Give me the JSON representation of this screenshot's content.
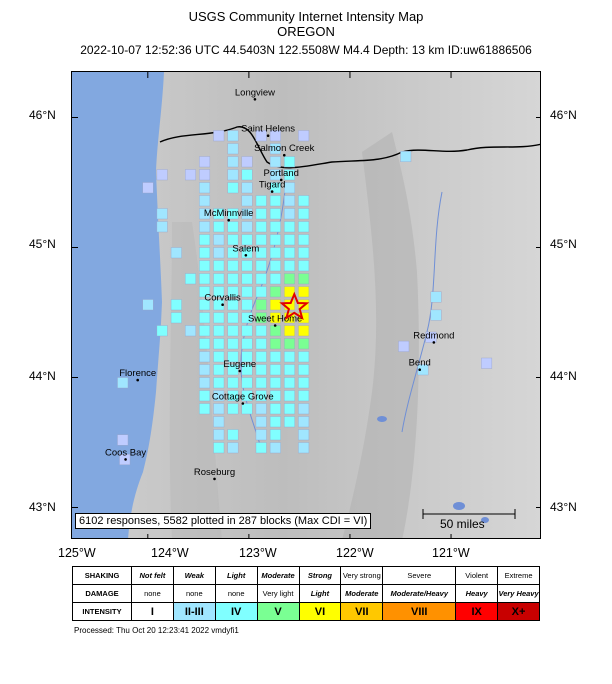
{
  "header": {
    "title": "USGS Community Internet Intensity Map",
    "region": "OREGON",
    "event_line": "2022-10-07 12:52:36 UTC 44.5403N 122.5508W M4.4 Depth: 13 km ID:uw61886506"
  },
  "axes": {
    "lat_labels": [
      "46°N",
      "45°N",
      "44°N",
      "43°N"
    ],
    "lon_labels": [
      "125°W",
      "124°W",
      "123°W",
      "122°W",
      "121°W"
    ],
    "lat_values": [
      46,
      45,
      44,
      43
    ],
    "lon_values": [
      -125,
      -124,
      -123,
      -122,
      -121
    ],
    "lat_range": [
      42.75,
      46.35
    ],
    "lon_range": [
      -124.75,
      -120.1
    ]
  },
  "cities": [
    {
      "name": "Longview",
      "lat": 46.14,
      "lon": -122.94
    },
    {
      "name": "Saint Helens",
      "lat": 45.86,
      "lon": -122.81
    },
    {
      "name": "Salmon Creek",
      "lat": 45.71,
      "lon": -122.65
    },
    {
      "name": "Portland",
      "lat": 45.52,
      "lon": -122.68
    },
    {
      "name": "Tigard",
      "lat": 45.43,
      "lon": -122.77
    },
    {
      "name": "McMinnville",
      "lat": 45.21,
      "lon": -123.2
    },
    {
      "name": "Salem",
      "lat": 44.94,
      "lon": -123.03
    },
    {
      "name": "Corvallis",
      "lat": 44.56,
      "lon": -123.26
    },
    {
      "name": "Sweet Home",
      "lat": 44.4,
      "lon": -122.74
    },
    {
      "name": "Redmond",
      "lat": 44.27,
      "lon": -121.17
    },
    {
      "name": "Bend",
      "lat": 44.06,
      "lon": -121.31
    },
    {
      "name": "Florence",
      "lat": 43.98,
      "lon": -124.1
    },
    {
      "name": "Eugene",
      "lat": 44.05,
      "lon": -123.09
    },
    {
      "name": "Cottage Grove",
      "lat": 43.8,
      "lon": -123.06
    },
    {
      "name": "Coos Bay",
      "lat": 43.37,
      "lon": -124.22
    },
    {
      "name": "Roseburg",
      "lat": 43.22,
      "lon": -123.34
    }
  ],
  "epicenter": {
    "lat": 44.5403,
    "lon": -122.5508,
    "icon": "red-star-icon"
  },
  "stats": "6102 responses, 5582 plotted in 287 blocks (Max CDI = VI)",
  "scale_bar": {
    "label": "50 miles"
  },
  "legend": {
    "rows": [
      {
        "header": "SHAKING",
        "cells": [
          "Not felt",
          "Weak",
          "Light",
          "Moderate",
          "Strong",
          "Very strong",
          "Severe",
          "Violent",
          "Extreme"
        ]
      },
      {
        "header": "DAMAGE",
        "cells": [
          "none",
          "none",
          "none",
          "Very light",
          "Light",
          "Moderate",
          "Moderate/Heavy",
          "Heavy",
          "Very Heavy"
        ]
      },
      {
        "header": "INTENSITY",
        "cells": [
          "I",
          "II-III",
          "IV",
          "V",
          "VI",
          "VII",
          "VIII",
          "IX",
          "X+"
        ]
      }
    ],
    "colors": [
      "#ffffff",
      "#bfccff",
      "#a0e6ff",
      "#80ffff",
      "#7aff93",
      "#ffff00",
      "#ffc800",
      "#ff9100",
      "#ff0000",
      "#c80000"
    ]
  },
  "footer": {
    "processed": "Processed: Thu Oct 20 12:23:41 2022 vmdyfi1"
  }
}
